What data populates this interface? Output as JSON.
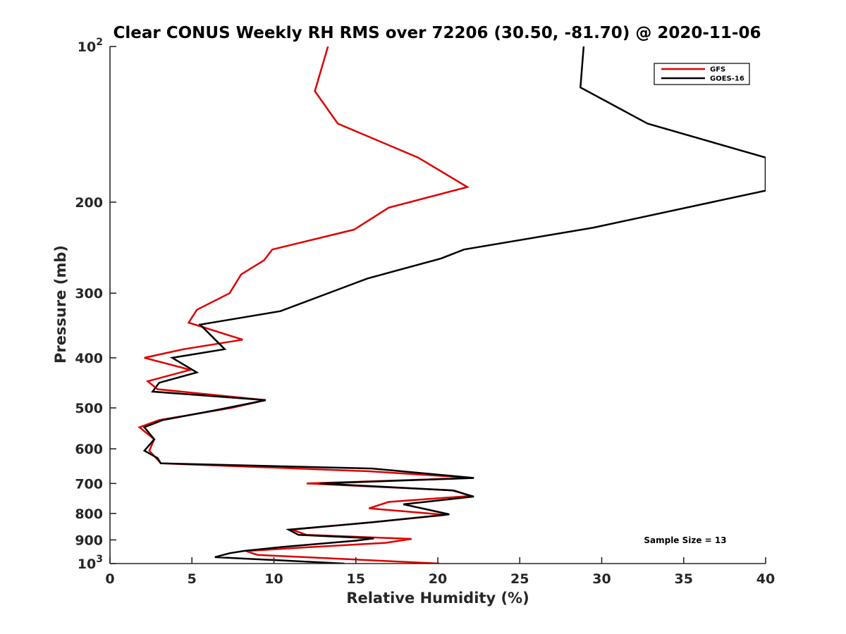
{
  "chart_data": {
    "type": "line",
    "title": "Clear CONUS Weekly RH RMS over 72206 (30.50, -81.70) @ 2020-11-06",
    "xlabel": "Relative Humidity (%)",
    "ylabel": "Pressure (mb)",
    "xlim": [
      0,
      40
    ],
    "ylim": [
      100,
      1000
    ],
    "yscale": "log",
    "yreversed": true,
    "grid": false,
    "legend_position": "top-right",
    "x_ticks": [
      {
        "value": 0,
        "label": "0"
      },
      {
        "value": 5,
        "label": "5"
      },
      {
        "value": 10,
        "label": "10"
      },
      {
        "value": 15,
        "label": "15"
      },
      {
        "value": 20,
        "label": "20"
      },
      {
        "value": 25,
        "label": "25"
      },
      {
        "value": 30,
        "label": "30"
      },
      {
        "value": 35,
        "label": "35"
      },
      {
        "value": 40,
        "label": "40"
      }
    ],
    "y_ticks": [
      {
        "value": 100,
        "label": "10",
        "exp": "2"
      },
      {
        "value": 200,
        "label": "200"
      },
      {
        "value": 300,
        "label": "300"
      },
      {
        "value": 400,
        "label": "400"
      },
      {
        "value": 500,
        "label": "500"
      },
      {
        "value": 600,
        "label": "600"
      },
      {
        "value": 700,
        "label": "700"
      },
      {
        "value": 800,
        "label": "800"
      },
      {
        "value": 900,
        "label": "900"
      },
      {
        "value": 1000,
        "label": "10",
        "exp": "3"
      }
    ],
    "annotation": "Sample Size = 13",
    "series": [
      {
        "name": "GFS",
        "color": "#dd0000",
        "points": [
          [
            13.3,
            100
          ],
          [
            12.5,
            122
          ],
          [
            13.9,
            141
          ],
          [
            18.8,
            164
          ],
          [
            21.8,
            187
          ],
          [
            17.0,
            205
          ],
          [
            14.9,
            226
          ],
          [
            9.9,
            247
          ],
          [
            9.4,
            259
          ],
          [
            8.0,
            276
          ],
          [
            7.3,
            300
          ],
          [
            5.3,
            323
          ],
          [
            4.8,
            342
          ],
          [
            8.1,
            369
          ],
          [
            4.5,
            385
          ],
          [
            2.1,
            400
          ],
          [
            4.9,
            422
          ],
          [
            2.3,
            444
          ],
          [
            2.9,
            460
          ],
          [
            9.5,
            483
          ],
          [
            7.4,
            500
          ],
          [
            3.0,
            528
          ],
          [
            1.8,
            545
          ],
          [
            2.7,
            575
          ],
          [
            2.4,
            605
          ],
          [
            3.1,
            640
          ],
          [
            15.8,
            663
          ],
          [
            22.2,
            683
          ],
          [
            12.0,
            700
          ],
          [
            21.0,
            722
          ],
          [
            22.0,
            740
          ],
          [
            17.0,
            760
          ],
          [
            15.8,
            782
          ],
          [
            20.5,
            805
          ],
          [
            16.0,
            832
          ],
          [
            11.1,
            860
          ],
          [
            12.0,
            880
          ],
          [
            18.4,
            896
          ],
          [
            16.8,
            912
          ],
          [
            11.5,
            932
          ],
          [
            8.3,
            946
          ],
          [
            9.0,
            962
          ],
          [
            20.1,
            1000
          ]
        ]
      },
      {
        "name": "GOES-16",
        "color": "#000000",
        "points": [
          [
            28.9,
            100
          ],
          [
            28.7,
            120
          ],
          [
            32.8,
            141
          ],
          [
            40.0,
            164
          ],
          [
            40.0,
            190
          ],
          [
            29.5,
            224
          ],
          [
            21.6,
            247
          ],
          [
            20.2,
            257
          ],
          [
            15.7,
            281
          ],
          [
            10.4,
            325
          ],
          [
            5.5,
            345
          ],
          [
            7.0,
            385
          ],
          [
            3.8,
            400
          ],
          [
            5.3,
            427
          ],
          [
            3.0,
            447
          ],
          [
            2.6,
            465
          ],
          [
            9.5,
            483
          ],
          [
            6.6,
            504
          ],
          [
            3.2,
            528
          ],
          [
            2.1,
            545
          ],
          [
            2.7,
            575
          ],
          [
            2.1,
            605
          ],
          [
            2.9,
            625
          ],
          [
            3.1,
            640
          ],
          [
            16.0,
            655
          ],
          [
            22.2,
            683
          ],
          [
            12.8,
            700
          ],
          [
            20.9,
            722
          ],
          [
            22.2,
            742
          ],
          [
            17.9,
            768
          ],
          [
            20.7,
            803
          ],
          [
            16.0,
            832
          ],
          [
            10.9,
            860
          ],
          [
            11.5,
            880
          ],
          [
            16.1,
            894
          ],
          [
            15.0,
            903
          ],
          [
            10.6,
            928
          ],
          [
            8.2,
            945
          ],
          [
            7.3,
            955
          ],
          [
            6.4,
            972
          ],
          [
            14.3,
            1000
          ]
        ]
      }
    ]
  }
}
